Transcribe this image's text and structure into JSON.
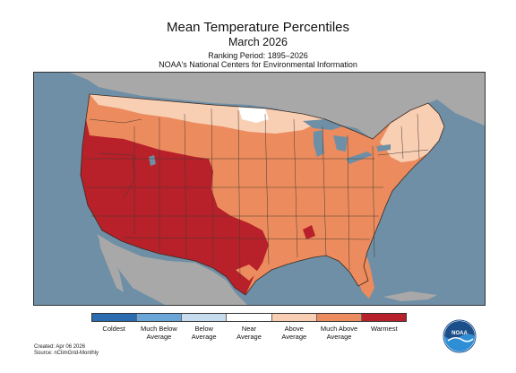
{
  "header": {
    "title": "Mean Temperature Percentiles",
    "subtitle": "March 2026",
    "ranking_period": "Ranking Period: 1895–2026",
    "source_org": "NOAA's National Centers for Environmental Information"
  },
  "legend": {
    "items": [
      {
        "label": "Coldest",
        "color": "#2b6cb0"
      },
      {
        "label": "Much Below\nAverage",
        "color": "#6ba6d9"
      },
      {
        "label": "Below\nAverage",
        "color": "#c7dcef"
      },
      {
        "label": "Near\nAverage",
        "color": "#ffffff"
      },
      {
        "label": "Above\nAverage",
        "color": "#f9cfb4"
      },
      {
        "label": "Much Above\nAverage",
        "color": "#ec8c5e"
      },
      {
        "label": "Warmest",
        "color": "#b8202a"
      }
    ]
  },
  "footer": {
    "created": "Created: Apr 06 2026",
    "source": "Source: nClimGrid-Monthly"
  },
  "logo": {
    "text": "NOAA",
    "icon": "noaa-logo-icon"
  },
  "colors": {
    "ocean": "#6e8fa6",
    "land_outside": "#a8a8a8",
    "state_border": "#4a3a30"
  }
}
